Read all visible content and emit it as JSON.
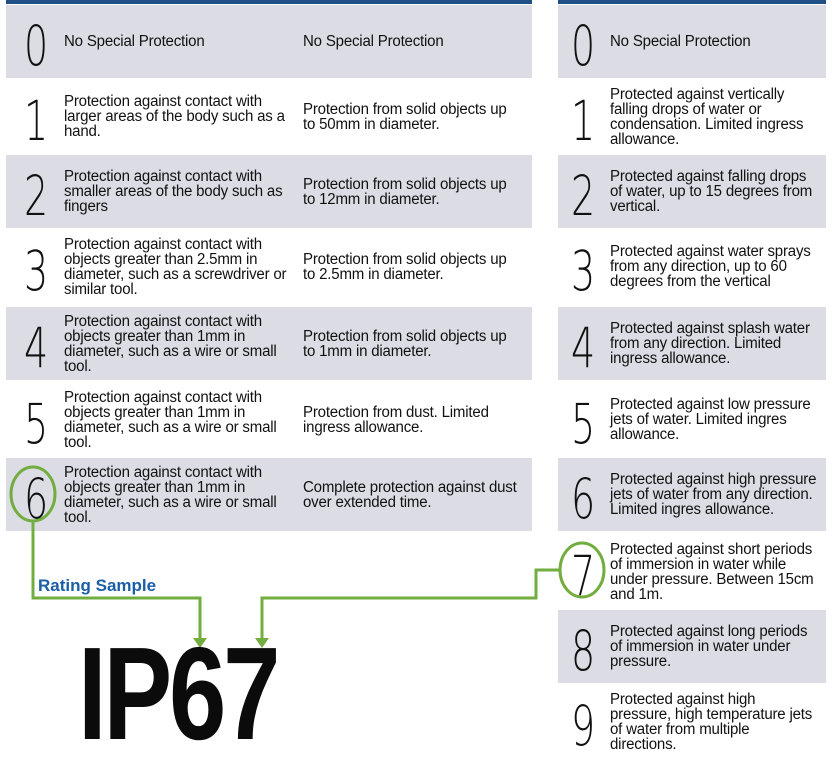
{
  "solids": [
    {
      "digit": "0",
      "contact": "No Special Protection",
      "solid": "No Special Protection"
    },
    {
      "digit": "1",
      "contact": "Protection against contact with larger areas of the body such as a hand.",
      "solid": "Protection from solid objects up to 50mm in diameter."
    },
    {
      "digit": "2",
      "contact": "Protection against contact with smaller areas of the body such as fingers",
      "solid": "Protection from solid objects up to 12mm in diameter."
    },
    {
      "digit": "3",
      "contact": "Protection against contact with objects greater than 2.5mm in diameter, such as a screwdriver or similar tool.",
      "solid": "Protection from solid objects up to 2.5mm in diameter."
    },
    {
      "digit": "4",
      "contact": "Protection against contact with objects greater than 1mm in diameter, such as a wire or small tool.",
      "solid": "Protection from solid objects up to 1mm in diameter."
    },
    {
      "digit": "5",
      "contact": "Protection against contact with objects greater than 1mm in diameter, such as a wire or small tool.",
      "solid": "Protection from dust. Limited ingress allowance."
    },
    {
      "digit": "6",
      "contact": "Protection against contact with objects greater than 1mm in diameter, such as a wire or small tool.",
      "solid": "Complete protection against dust over extended time."
    }
  ],
  "liquids": [
    {
      "digit": "0",
      "text": "No Special Protection"
    },
    {
      "digit": "1",
      "text": "Protected against vertically falling drops of water or condensation. Limited ingress allowance."
    },
    {
      "digit": "2",
      "text": "Protected against falling drops of water, up to 15 degrees from vertical."
    },
    {
      "digit": "3",
      "text": "Protected against water sprays from any direction, up to 60 degrees from the vertical"
    },
    {
      "digit": "4",
      "text": "Protected against splash water from any direction. Limited ingress allowance."
    },
    {
      "digit": "5",
      "text": "Protected against low pressure jets of water. Limited ingres allowance."
    },
    {
      "digit": "6",
      "text": "Protected against high pressure jets of water from any direction. Limited ingres allowance."
    },
    {
      "digit": "7",
      "text": "Protected against short periods of immersion in water while under pressure. Between 15cm and 1m."
    },
    {
      "digit": "8",
      "text": "Protected against long periods of immersion in water under pressure."
    },
    {
      "digit": "9",
      "text": "Protected against high pressure, high temperature jets of water from multiple directions."
    }
  ],
  "sample": {
    "label": "Rating Sample",
    "code": "IP67",
    "highlight_solid": "6",
    "highlight_liquid": "7"
  },
  "colors": {
    "row_gray": "#dcdce4",
    "accent_green": "#72ad3f",
    "label_blue": "#1a5ea8",
    "top_line": "#1f4f86"
  }
}
